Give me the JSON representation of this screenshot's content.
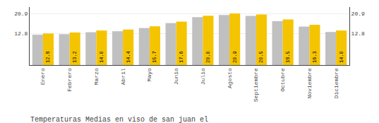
{
  "chart_data": {
    "type": "bar",
    "title": "Temperaturas Medias en viso de san juan el",
    "categories": [
      "Enero",
      "Febrero",
      "Marzo",
      "Abril",
      "Mayo",
      "Junio",
      "Julio",
      "Agosto",
      "Septiembre",
      "Octubre",
      "Noviembre",
      "Diciembre"
    ],
    "series": [
      {
        "color": "#C0C0C0",
        "values": [
          12.3,
          12.5,
          13.3,
          13.7,
          15.0,
          17.0,
          19.4,
          20.3,
          19.9,
          17.8,
          15.6,
          13.4
        ]
      },
      {
        "color": "#F5C400",
        "values": [
          12.8,
          13.2,
          14.0,
          14.4,
          15.7,
          17.6,
          20.0,
          20.9,
          20.5,
          18.5,
          16.3,
          14.0
        ],
        "data_labels": true,
        "value_labels": [
          "12.8",
          "13.2",
          "14.0",
          "14.4",
          "15.7",
          "17.6",
          "20.0",
          "20.9",
          "20.5",
          "18.5",
          "16.3",
          "14.0"
        ]
      }
    ],
    "ylim": [
      0,
      23.5
    ],
    "yticks": [
      12.8,
      20.9
    ],
    "y2lim": [
      0,
      23.5
    ],
    "y2ticks": [
      12.8,
      20.9
    ],
    "grid": true
  }
}
